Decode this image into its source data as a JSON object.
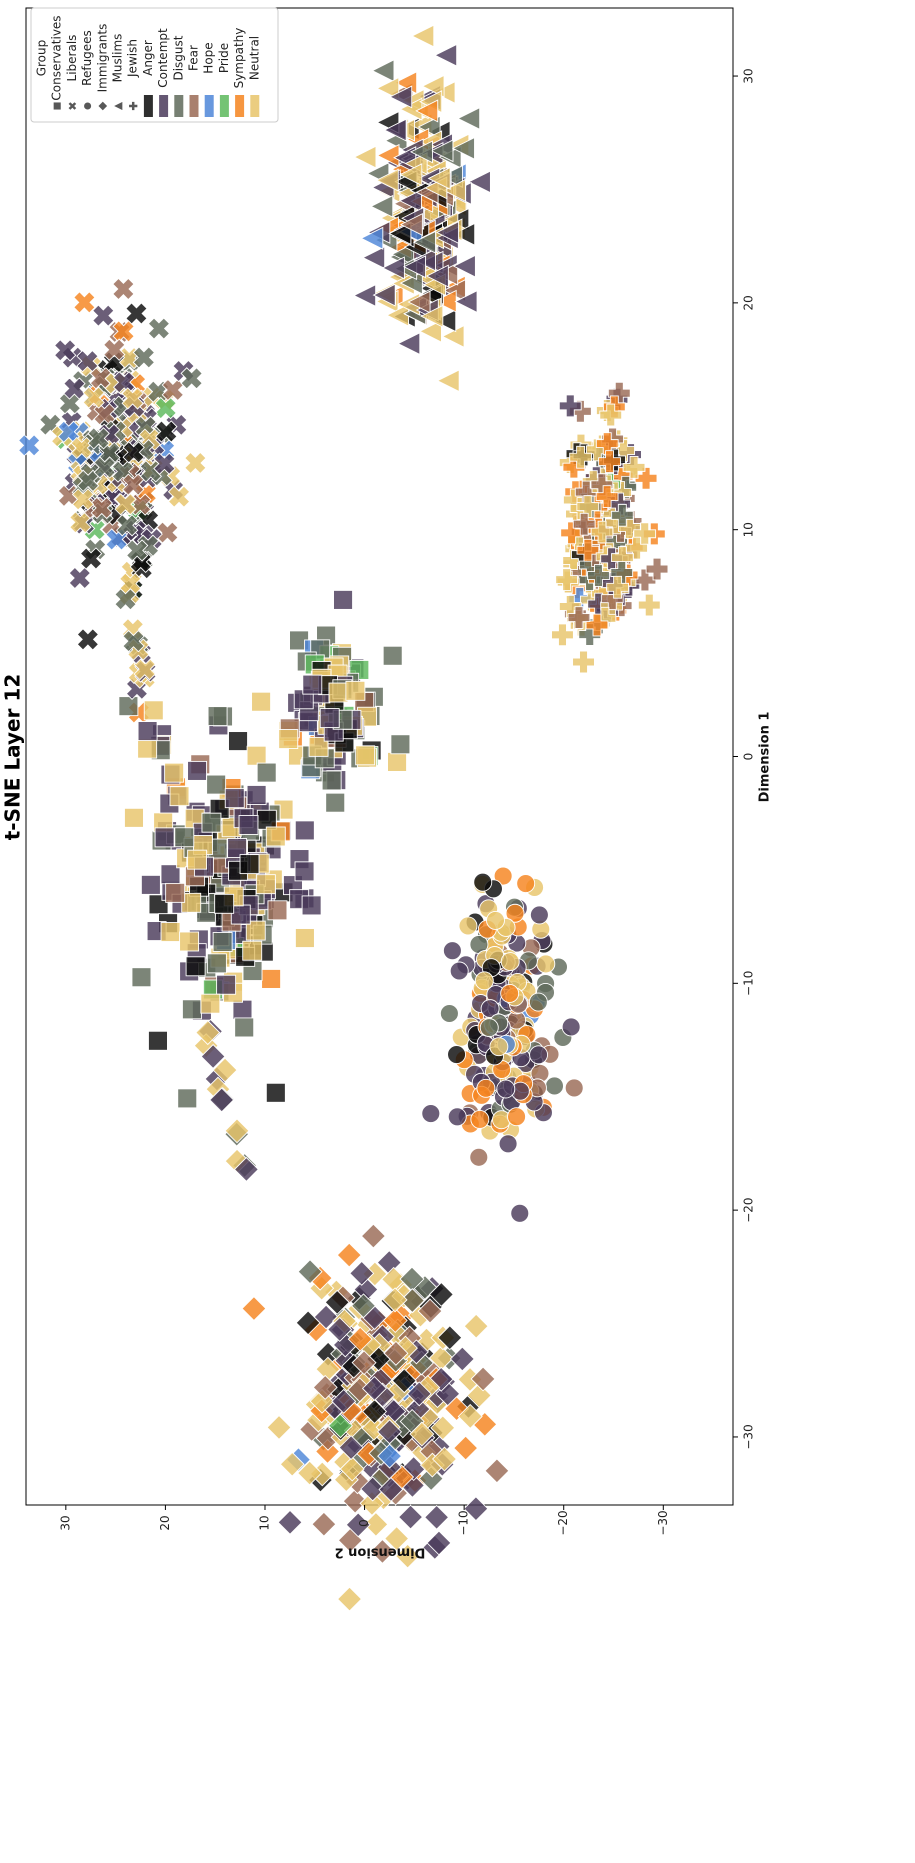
{
  "chart_data": {
    "type": "scatter",
    "title": "t-SNE Layer 12",
    "xlabel": "Dimension 1",
    "ylabel": "Dimension 2",
    "xlim": [
      33,
      -33
    ],
    "ylim": [
      -37,
      34
    ],
    "x_ticks": [
      30,
      20,
      10,
      0,
      -10,
      -20,
      -30
    ],
    "y_ticks": [
      30,
      20,
      10,
      0,
      -10,
      -20,
      -30
    ],
    "x_tick_labels": [
      "30",
      "20",
      "10",
      "0",
      "−10",
      "−20",
      "−30"
    ],
    "y_tick_labels": [
      "30",
      "20",
      "10",
      "0",
      "−10",
      "−20",
      "−30"
    ],
    "grid": false,
    "legend_position": "top-left",
    "legend": {
      "group_title": "Group",
      "groups": [
        {
          "name": "Conservatives",
          "marker": "square"
        },
        {
          "name": "Liberals",
          "marker": "x"
        },
        {
          "name": "Refugees",
          "marker": "circle"
        },
        {
          "name": "Immigrants",
          "marker": "diamond"
        },
        {
          "name": "Muslims",
          "marker": "triangle"
        },
        {
          "name": "Jewish",
          "marker": "plus"
        }
      ],
      "emotions": [
        {
          "name": "Anger",
          "color": "#0b0b0b"
        },
        {
          "name": "Contempt",
          "color": "#4a3a5a"
        },
        {
          "name": "Disgust",
          "color": "#5f6a5a"
        },
        {
          "name": "Fear",
          "color": "#9a6a55"
        },
        {
          "name": "Hope",
          "color": "#4e86d8"
        },
        {
          "name": "Pride",
          "color": "#5cb85c"
        },
        {
          "name": "Sympathy",
          "color": "#f5841f"
        },
        {
          "name": "Neutral",
          "color": "#e8c46a"
        }
      ]
    },
    "clusters": [
      {
        "group": "Conservatives",
        "marker": "square",
        "center": [
          -5.5,
          14
        ],
        "spread": [
          5,
          6
        ],
        "count": 230,
        "mix": {
          "Anger": 0.12,
          "Contempt": 0.28,
          "Disgust": 0.22,
          "Fear": 0.05,
          "Hope": 0.02,
          "Pride": 0.02,
          "Sympathy": 0.02,
          "Neutral": 0.27
        }
      },
      {
        "group": "Conservatives",
        "marker": "square",
        "center": [
          1.5,
          3
        ],
        "spread": [
          3,
          4
        ],
        "count": 110,
        "mix": {
          "Anger": 0.12,
          "Contempt": 0.2,
          "Disgust": 0.25,
          "Fear": 0.05,
          "Hope": 0.03,
          "Pride": 0.03,
          "Sympathy": 0.02,
          "Neutral": 0.3
        }
      },
      {
        "group": "Liberals",
        "marker": "x",
        "center": [
          13,
          25
        ],
        "spread": [
          5,
          5
        ],
        "count": 230,
        "mix": {
          "Anger": 0.15,
          "Contempt": 0.25,
          "Disgust": 0.22,
          "Fear": 0.08,
          "Hope": 0.05,
          "Pride": 0.02,
          "Sympathy": 0.03,
          "Neutral": 0.2
        }
      },
      {
        "group": "Refugees",
        "marker": "circle",
        "center": [
          -11.5,
          -14
        ],
        "spread": [
          5,
          3.8
        ],
        "count": 240,
        "mix": {
          "Anger": 0.08,
          "Contempt": 0.3,
          "Disgust": 0.12,
          "Fear": 0.1,
          "Hope": 0.01,
          "Pride": 0.0,
          "Sympathy": 0.15,
          "Neutral": 0.24
        }
      },
      {
        "group": "Immigrants",
        "marker": "diamond",
        "center": [
          -28,
          -2
        ],
        "spread": [
          5,
          7
        ],
        "count": 320,
        "mix": {
          "Anger": 0.08,
          "Contempt": 0.22,
          "Disgust": 0.12,
          "Fear": 0.15,
          "Hope": 0.02,
          "Pride": 0.01,
          "Sympathy": 0.15,
          "Neutral": 0.25
        }
      },
      {
        "group": "Muslims",
        "marker": "triangle",
        "center": [
          24,
          -6
        ],
        "spread": [
          4.5,
          3.8
        ],
        "count": 260,
        "mix": {
          "Anger": 0.12,
          "Contempt": 0.3,
          "Disgust": 0.12,
          "Fear": 0.08,
          "Hope": 0.02,
          "Pride": 0.0,
          "Sympathy": 0.1,
          "Neutral": 0.26
        }
      },
      {
        "group": "Jewish",
        "marker": "plus",
        "center": [
          10,
          -24
        ],
        "spread": [
          4,
          3.5
        ],
        "count": 220,
        "mix": {
          "Anger": 0.05,
          "Contempt": 0.12,
          "Disgust": 0.12,
          "Fear": 0.15,
          "Hope": 0.01,
          "Pride": 0.01,
          "Sympathy": 0.2,
          "Neutral": 0.34
        }
      }
    ],
    "trails": [
      {
        "group": "Conservatives",
        "marker": "square",
        "from": [
          -1,
          19
        ],
        "to": [
          2,
          22.5
        ],
        "count": 10
      },
      {
        "group": "Liberals",
        "marker": "x",
        "from": [
          3,
          22.5
        ],
        "to": [
          7,
          23.5
        ],
        "count": 14
      },
      {
        "group": "Immigrants",
        "marker": "diamond",
        "from": [
          -12,
          16
        ],
        "to": [
          -18,
          12
        ],
        "count": 14
      }
    ]
  }
}
